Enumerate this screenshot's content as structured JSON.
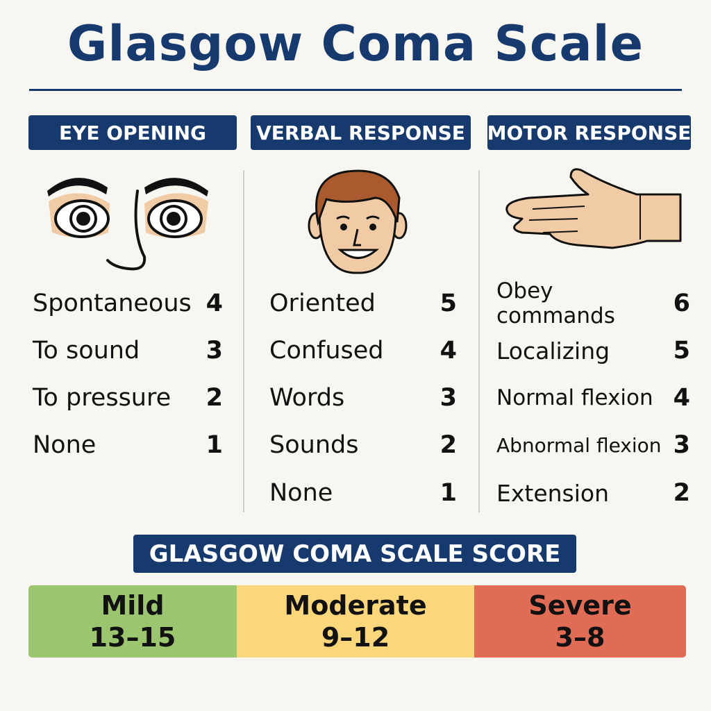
{
  "title": "Glasgow Coma Scale",
  "colors": {
    "navy": "#173a6e",
    "mild": "#9bc56f",
    "moderate": "#fcd67a",
    "severe": "#e06c55",
    "background": "#f8f6f0"
  },
  "columns": [
    {
      "header": "EYE OPENING",
      "icon": "eyes-icon",
      "items": [
        {
          "label": "Spontaneous",
          "score": "4"
        },
        {
          "label": "To sound",
          "score": "3"
        },
        {
          "label": "To pressure",
          "score": "2"
        },
        {
          "label": "None",
          "score": "1"
        }
      ]
    },
    {
      "header": "VERBAL RESPONSE",
      "icon": "face-icon",
      "items": [
        {
          "label": "Oriented",
          "score": "5"
        },
        {
          "label": "Confused",
          "score": "4"
        },
        {
          "label": "Words",
          "score": "3"
        },
        {
          "label": "Sounds",
          "score": "2"
        },
        {
          "label": "None",
          "score": "1"
        }
      ]
    },
    {
      "header": "MOTOR RESPONSE",
      "icon": "hand-icon",
      "items": [
        {
          "label": "Obey commands",
          "score": "6"
        },
        {
          "label": "Localizing",
          "score": "5"
        },
        {
          "label": "Normal flexion",
          "score": "4"
        },
        {
          "label": "Abnormal flexion",
          "score": "3"
        },
        {
          "label": "Extension",
          "score": "2"
        }
      ]
    }
  ],
  "score": {
    "header": "GLASGOW COMA SCALE SCORE",
    "ranges": [
      {
        "label": "Mild",
        "range": "13–15"
      },
      {
        "label": "Moderate",
        "range": "9–12"
      },
      {
        "label": "Severe",
        "range": "3–8"
      }
    ]
  }
}
